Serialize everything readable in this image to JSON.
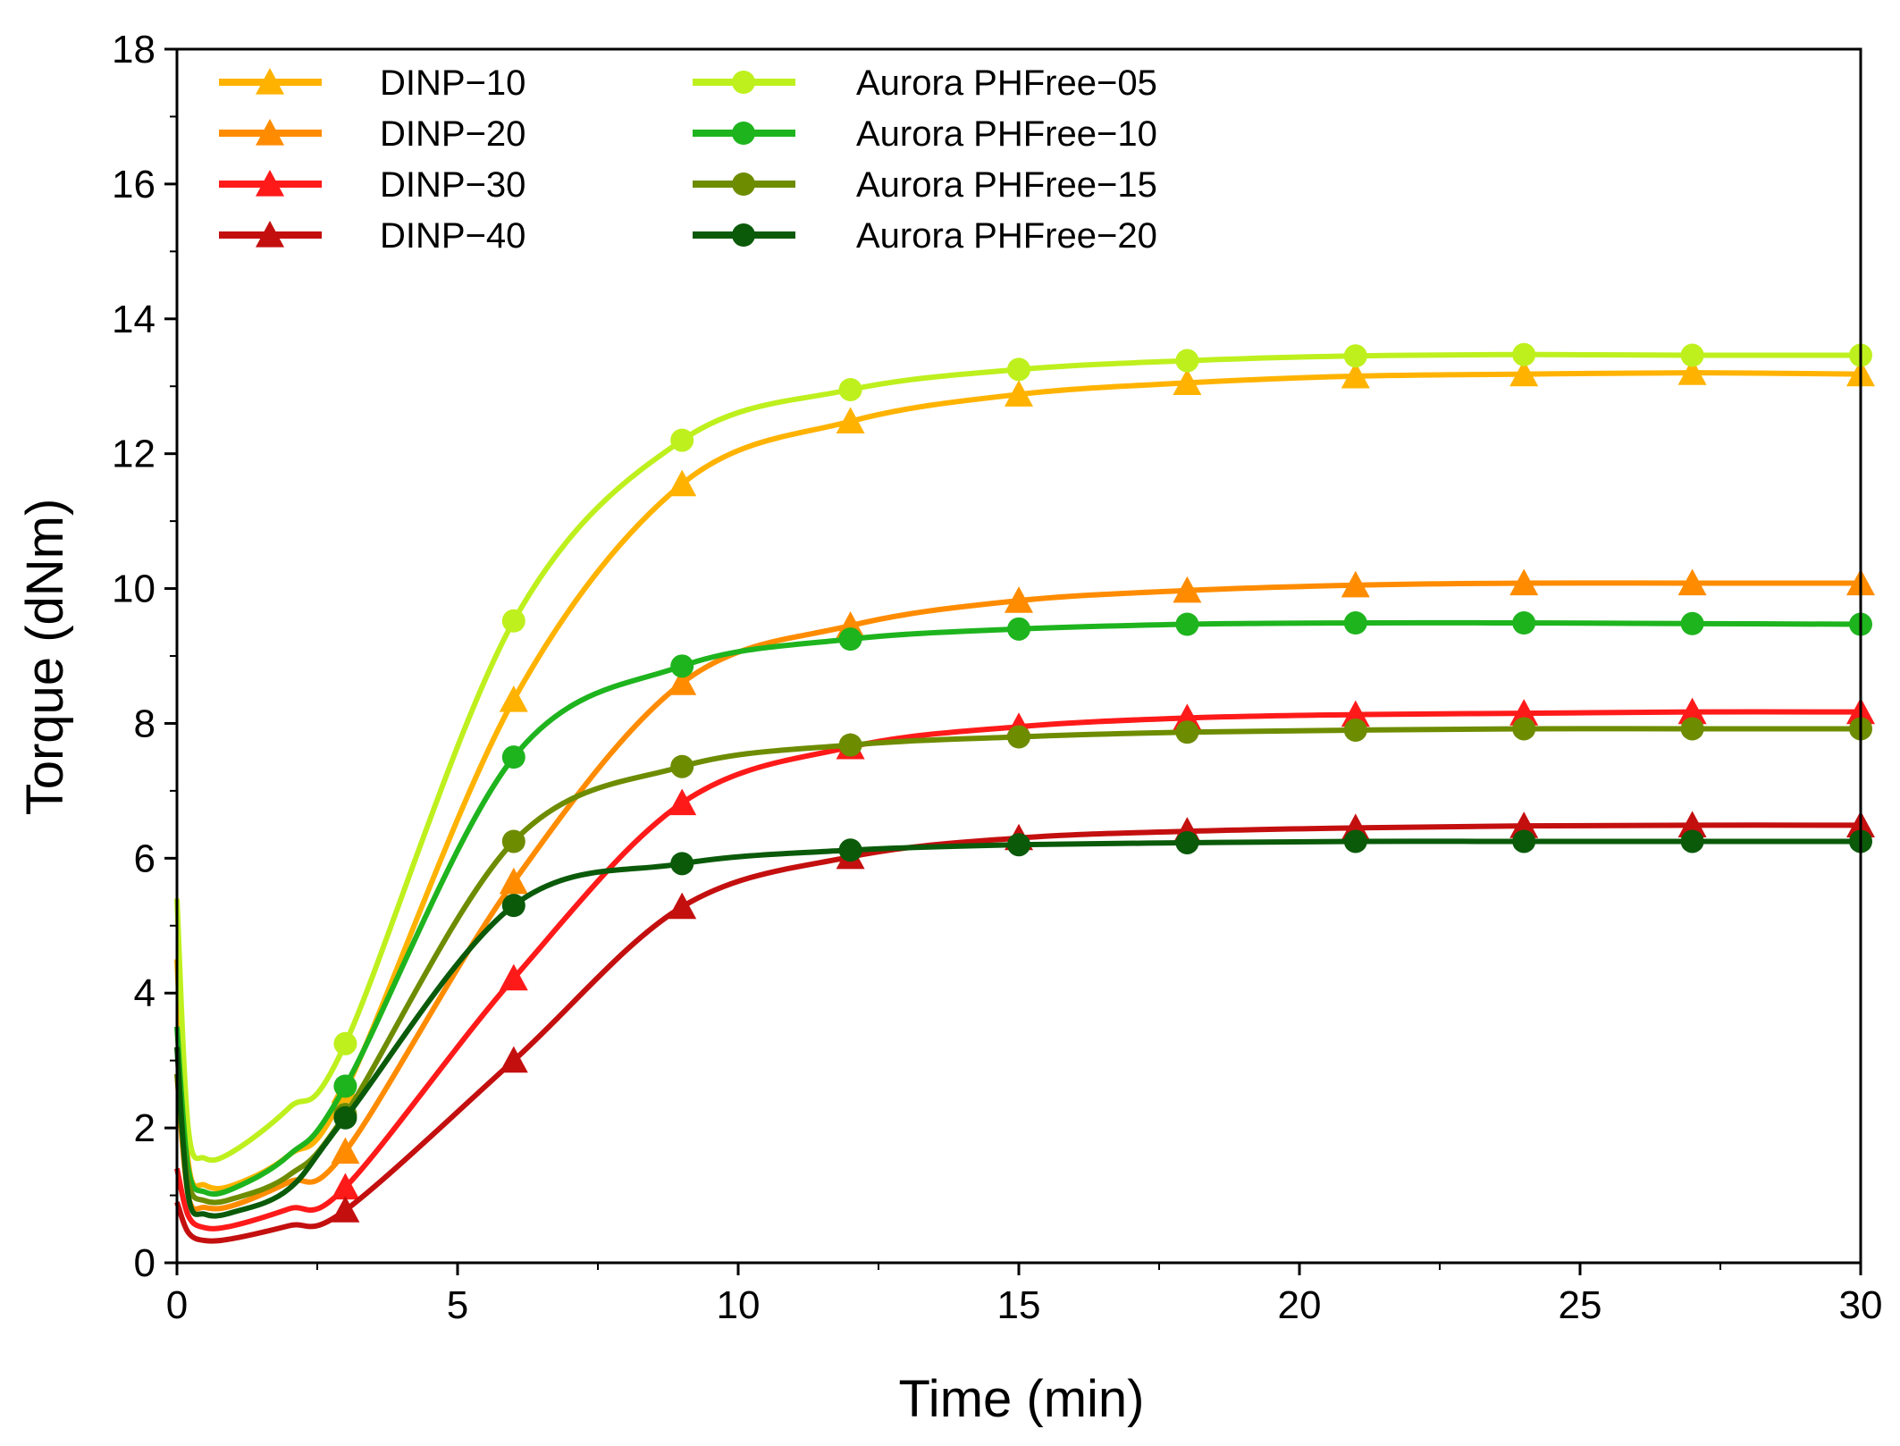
{
  "chart_data": {
    "type": "line",
    "xlabel": "Time (min)",
    "ylabel": "Torque (dNm)",
    "xlim": [
      0,
      30
    ],
    "ylim": [
      0,
      18
    ],
    "xticks": [
      0,
      5,
      10,
      15,
      20,
      25,
      30
    ],
    "yticks": [
      0,
      2,
      4,
      6,
      8,
      10,
      12,
      14,
      16,
      18
    ],
    "grid": false,
    "legend_position": "top-left",
    "marker_x": [
      3,
      6,
      9,
      12,
      15,
      18,
      21,
      24,
      27,
      30
    ],
    "series": [
      {
        "name": "DINP−10",
        "color": "#FFB300",
        "marker": "triangle",
        "initial": [
          [
            0,
            4.5
          ],
          [
            0.2,
            1.5
          ],
          [
            0.5,
            1.15
          ],
          [
            1.0,
            1.15
          ],
          [
            2.0,
            1.6
          ]
        ],
        "values": [
          2.55,
          8.35,
          11.55,
          12.48,
          12.88,
          13.05,
          13.15,
          13.18,
          13.2,
          13.18
        ]
      },
      {
        "name": "DINP−20",
        "color": "#FF8C00",
        "marker": "triangle",
        "initial": [
          [
            0,
            2.8
          ],
          [
            0.2,
            1.0
          ],
          [
            0.5,
            0.82
          ],
          [
            1.0,
            0.85
          ],
          [
            2.0,
            1.2
          ]
        ],
        "values": [
          1.65,
          5.65,
          8.6,
          9.45,
          9.82,
          9.97,
          10.05,
          10.08,
          10.08,
          10.08
        ]
      },
      {
        "name": "DINP−30",
        "color": "#FF1A1A",
        "marker": "triangle",
        "initial": [
          [
            0,
            1.4
          ],
          [
            0.2,
            0.7
          ],
          [
            0.5,
            0.52
          ],
          [
            1.0,
            0.55
          ],
          [
            2.0,
            0.8
          ]
        ],
        "values": [
          1.12,
          4.22,
          6.82,
          7.65,
          7.95,
          8.08,
          8.13,
          8.15,
          8.17,
          8.17
        ]
      },
      {
        "name": "DINP−40",
        "color": "#C40F0F",
        "marker": "triangle",
        "initial": [
          [
            0,
            0.9
          ],
          [
            0.2,
            0.45
          ],
          [
            0.5,
            0.33
          ],
          [
            1.0,
            0.36
          ],
          [
            2.0,
            0.55
          ]
        ],
        "values": [
          0.78,
          3.0,
          5.28,
          6.02,
          6.3,
          6.4,
          6.45,
          6.48,
          6.49,
          6.49
        ]
      },
      {
        "name": "Aurora PHFree−05",
        "color": "#BEF01E",
        "marker": "circle",
        "initial": [
          [
            0,
            5.4
          ],
          [
            0.2,
            2.0
          ],
          [
            0.5,
            1.55
          ],
          [
            1.0,
            1.65
          ],
          [
            2.0,
            2.3
          ]
        ],
        "values": [
          3.25,
          9.52,
          12.2,
          12.95,
          13.25,
          13.38,
          13.45,
          13.47,
          13.46,
          13.46
        ]
      },
      {
        "name": "Aurora PHFree−10",
        "color": "#1EB41E",
        "marker": "circle",
        "initial": [
          [
            0,
            3.5
          ],
          [
            0.2,
            1.4
          ],
          [
            0.5,
            1.05
          ],
          [
            1.0,
            1.1
          ],
          [
            2.0,
            1.6
          ]
        ],
        "values": [
          2.62,
          7.5,
          8.85,
          9.25,
          9.4,
          9.47,
          9.49,
          9.49,
          9.48,
          9.47
        ]
      },
      {
        "name": "Aurora PHFree−15",
        "color": "#6E8C00",
        "marker": "circle",
        "initial": [
          [
            0,
            2.8
          ],
          [
            0.2,
            1.2
          ],
          [
            0.5,
            0.92
          ],
          [
            1.0,
            0.95
          ],
          [
            2.0,
            1.3
          ]
        ],
        "values": [
          2.2,
          6.25,
          7.36,
          7.68,
          7.8,
          7.87,
          7.9,
          7.92,
          7.92,
          7.92
        ]
      },
      {
        "name": "Aurora PHFree−20",
        "color": "#0A5A0A",
        "marker": "circle",
        "initial": [
          [
            0,
            3.2
          ],
          [
            0.2,
            1.0
          ],
          [
            0.5,
            0.72
          ],
          [
            1.0,
            0.75
          ],
          [
            2.0,
            1.1
          ]
        ],
        "values": [
          2.15,
          5.3,
          5.92,
          6.12,
          6.2,
          6.23,
          6.25,
          6.25,
          6.25,
          6.25
        ]
      }
    ]
  }
}
